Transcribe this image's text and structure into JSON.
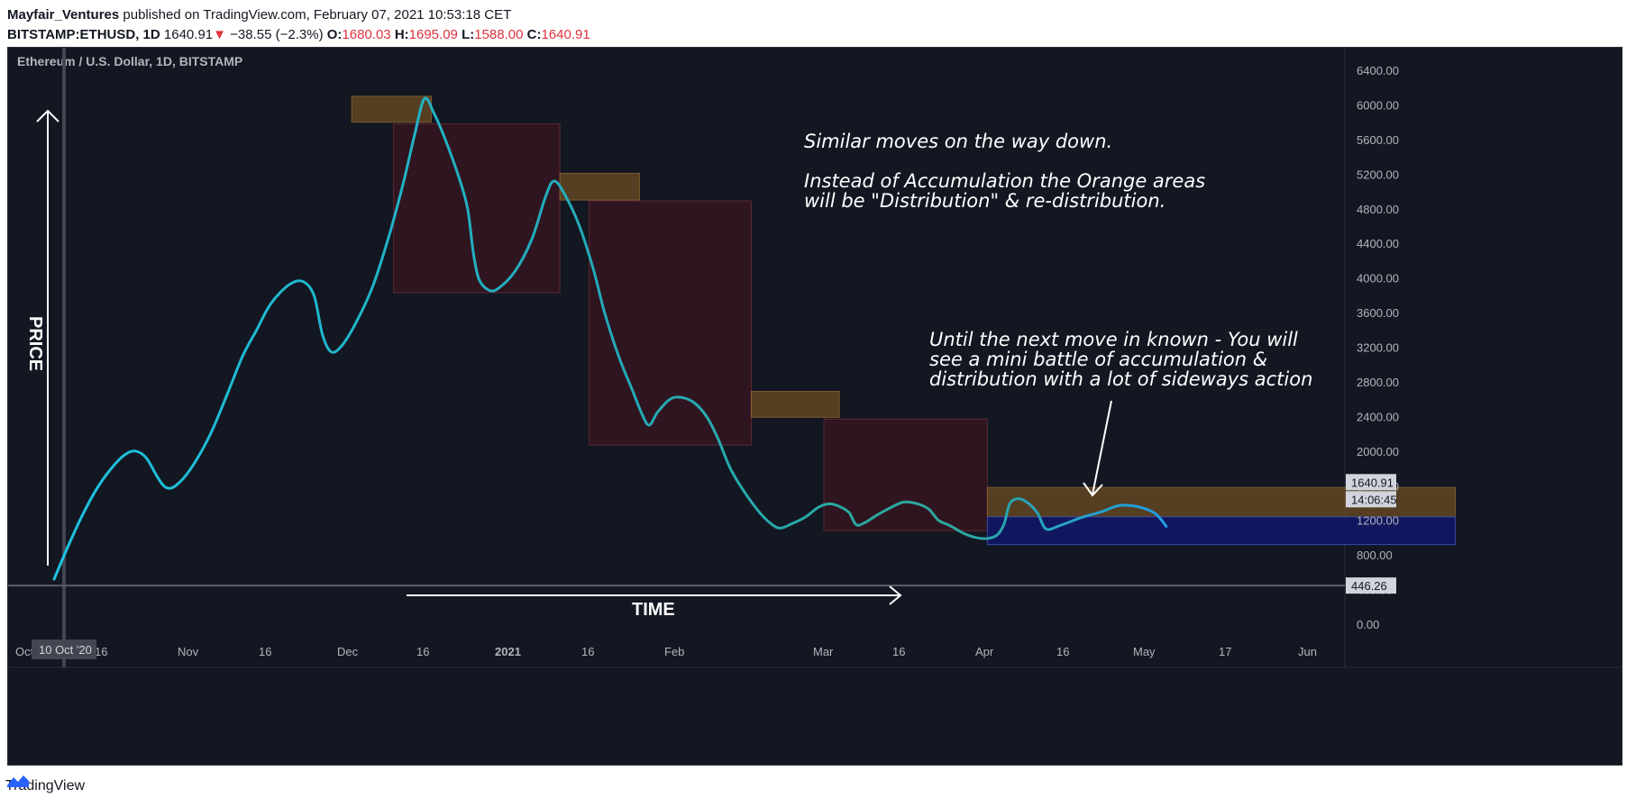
{
  "header": {
    "author": "Mayfair_Ventures",
    "published": "published on TradingView.com, February 07, 2021 10:53:18 CET",
    "symbol": "BITSTAMP:ETHUSD, 1D",
    "last": "1640.91",
    "change_arrow": "▼",
    "change": "−38.55 (−2.3%)",
    "o_label": "O:",
    "o": "1680.03",
    "h_label": "H:",
    "h": "1695.09",
    "l_label": "L:",
    "l": "1588.00",
    "c_label": "C:",
    "c": "1640.91"
  },
  "footer": {
    "brand": "TradingView",
    "logo_icon": "tradingview-logo-icon"
  },
  "colors": {
    "background": "#131722",
    "line": "#18b4d4",
    "orange_box": "rgba(140,95,35,0.55)",
    "red_box": "rgba(90,20,30,0.40)",
    "blue_box": "#11175f",
    "axis_text": "#b2b5be"
  },
  "chart_data": {
    "type": "line",
    "title": "Ethereum / U.S. Dollar, 1D, BITSTAMP",
    "x_ticks": [
      {
        "label": "Oct",
        "bold": false
      },
      {
        "label": "16",
        "bold": false
      },
      {
        "label": "Nov",
        "bold": false
      },
      {
        "label": "16",
        "bold": false
      },
      {
        "label": "Dec",
        "bold": false
      },
      {
        "label": "16",
        "bold": false
      },
      {
        "label": "2021",
        "bold": true
      },
      {
        "label": "16",
        "bold": false
      },
      {
        "label": "Feb",
        "bold": false
      },
      {
        "label": "Mar",
        "bold": false
      },
      {
        "label": "16",
        "bold": false
      },
      {
        "label": "Apr",
        "bold": false
      },
      {
        "label": "16",
        "bold": false
      },
      {
        "label": "May",
        "bold": false
      },
      {
        "label": "17",
        "bold": false
      },
      {
        "label": "Jun",
        "bold": false
      }
    ],
    "y_ticks": [
      "0.00",
      "400.00",
      "800.00",
      "1200.00",
      "1600.00",
      "2000.00",
      "2400.00",
      "2800.00",
      "3200.00",
      "3600.00",
      "4000.00",
      "4400.00",
      "4800.00",
      "5200.00",
      "5600.00",
      "6000.00",
      "6400.00"
    ],
    "ylim": [
      -150,
      6700
    ],
    "price_labels": {
      "last_price": "1640.91",
      "countdown": "14:06:45",
      "crosshair_price": "446.26",
      "crosshair_date": "10 Oct '20"
    },
    "series": [
      {
        "points": [
          [
            0,
            520
          ],
          [
            10,
            900
          ],
          [
            20,
            1250
          ],
          [
            30,
            1550
          ],
          [
            40,
            1780
          ],
          [
            50,
            1950
          ],
          [
            58,
            2000
          ],
          [
            66,
            1920
          ],
          [
            74,
            1700
          ],
          [
            80,
            1580
          ],
          [
            87,
            1600
          ],
          [
            98,
            1800
          ],
          [
            112,
            2200
          ],
          [
            125,
            2700
          ],
          [
            135,
            3100
          ],
          [
            145,
            3400
          ],
          [
            155,
            3700
          ],
          [
            168,
            3920
          ],
          [
            178,
            3960
          ],
          [
            186,
            3800
          ],
          [
            192,
            3350
          ],
          [
            198,
            3150
          ],
          [
            205,
            3200
          ],
          [
            215,
            3450
          ],
          [
            228,
            3900
          ],
          [
            240,
            4500
          ],
          [
            250,
            5100
          ],
          [
            258,
            5650
          ],
          [
            265,
            6070
          ],
          [
            272,
            5900
          ],
          [
            280,
            5600
          ],
          [
            290,
            5150
          ],
          [
            296,
            4800
          ],
          [
            300,
            4300
          ],
          [
            304,
            3990
          ],
          [
            311,
            3860
          ],
          [
            318,
            3880
          ],
          [
            330,
            4080
          ],
          [
            342,
            4450
          ],
          [
            352,
            4950
          ],
          [
            358,
            5120
          ],
          [
            366,
            4950
          ],
          [
            376,
            4600
          ],
          [
            386,
            4100
          ],
          [
            394,
            3600
          ],
          [
            404,
            3100
          ],
          [
            414,
            2700
          ],
          [
            421,
            2420
          ],
          [
            426,
            2300
          ],
          [
            432,
            2450
          ],
          [
            441,
            2600
          ],
          [
            449,
            2620
          ],
          [
            458,
            2560
          ],
          [
            467,
            2400
          ],
          [
            475,
            2150
          ],
          [
            484,
            1800
          ],
          [
            494,
            1530
          ],
          [
            505,
            1290
          ],
          [
            514,
            1150
          ],
          [
            520,
            1110
          ],
          [
            528,
            1160
          ],
          [
            538,
            1240
          ],
          [
            547,
            1350
          ],
          [
            555,
            1390
          ],
          [
            562,
            1360
          ],
          [
            569,
            1290
          ],
          [
            574,
            1150
          ],
          [
            580,
            1170
          ],
          [
            590,
            1270
          ],
          [
            598,
            1340
          ],
          [
            608,
            1410
          ],
          [
            618,
            1390
          ],
          [
            626,
            1330
          ],
          [
            633,
            1200
          ],
          [
            641,
            1140
          ],
          [
            651,
            1050
          ],
          [
            660,
            1000
          ],
          [
            668,
            990
          ],
          [
            675,
            1030
          ],
          [
            680,
            1160
          ],
          [
            684,
            1390
          ],
          [
            690,
            1450
          ],
          [
            697,
            1400
          ],
          [
            704,
            1280
          ],
          [
            710,
            1100
          ],
          [
            720,
            1140
          ],
          [
            735,
            1230
          ],
          [
            750,
            1300
          ],
          [
            762,
            1370
          ],
          [
            775,
            1360
          ],
          [
            788,
            1280
          ],
          [
            796,
            1130
          ]
        ]
      }
    ],
    "zones": [
      {
        "type": "orange",
        "x0": 213,
        "x1": 270,
        "y0": 5800,
        "y1": 6100
      },
      {
        "type": "red",
        "x0": 243,
        "x1": 362,
        "y0": 3830,
        "y1": 5780
      },
      {
        "type": "orange",
        "x0": 362,
        "x1": 419,
        "y0": 4900,
        "y1": 5210
      },
      {
        "type": "red",
        "x0": 383,
        "x1": 499,
        "y0": 2070,
        "y1": 4890
      },
      {
        "type": "orange",
        "x0": 499,
        "x1": 562,
        "y0": 2390,
        "y1": 2690
      },
      {
        "type": "red",
        "x0": 551,
        "x1": 668,
        "y0": 1080,
        "y1": 2370
      },
      {
        "type": "orange",
        "x0": 668,
        "x1": 1003,
        "y0": 1240,
        "y1": 1580
      },
      {
        "type": "blue",
        "x0": 668,
        "x1": 1003,
        "y0": 920,
        "y1": 1240
      }
    ],
    "annotations": [
      {
        "text": "Similar moves on the way down."
      },
      {
        "text": "Instead of Accumulation the Orange areas"
      },
      {
        "text": "will be \"Distribution\" & re-distribution."
      },
      {
        "text": "Until the next move in known - You will"
      },
      {
        "text": "see a mini battle of accumulation &"
      },
      {
        "text": "distribution with a lot of sideways action"
      }
    ],
    "price_axis_label": "PRICE",
    "time_axis_label": "TIME",
    "grid": false
  }
}
